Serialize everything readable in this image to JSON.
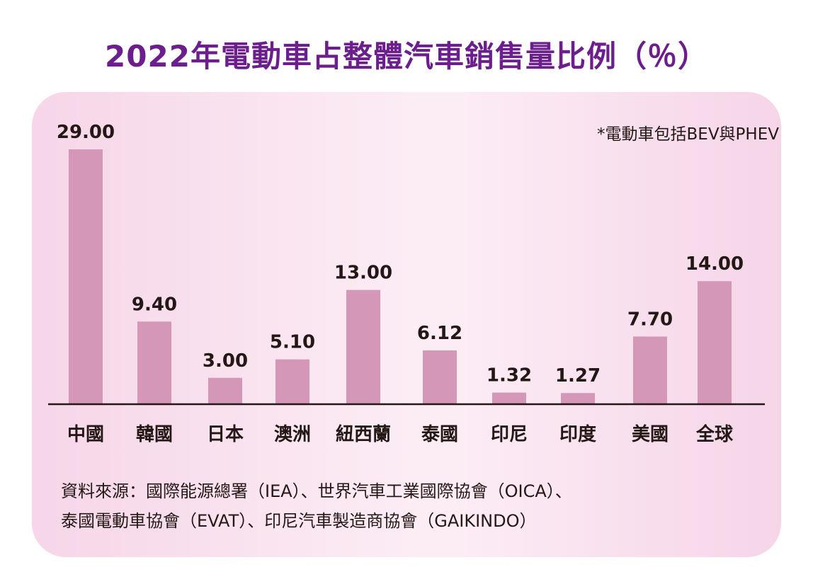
{
  "chart_data": {
    "type": "bar",
    "title": "2022年電動車占整體汽車銷售量比例（％）",
    "note": "*電動車包括BEV與PHEV",
    "categories": [
      "中國",
      "韓國",
      "日本",
      "澳洲",
      "紐西蘭",
      "泰國",
      "印尼",
      "印度",
      "美國",
      "全球"
    ],
    "values": [
      29.0,
      9.4,
      3.0,
      5.1,
      13.0,
      6.12,
      1.32,
      1.27,
      7.7,
      14.0
    ],
    "value_labels": [
      "29.00",
      "9.40",
      "3.00",
      "5.10",
      "13.00",
      "6.12",
      "1.32",
      "1.27",
      "7.70",
      "14.00"
    ],
    "xlabel": "",
    "ylabel": "",
    "ylim": [
      0,
      29
    ],
    "bar_color": "#d597b8",
    "grid": false
  },
  "source": {
    "line1": "資料來源：國際能源總署（IEA）、世界汽車工業國際協會（OICA）、",
    "line2": "泰國電動車協會（EVAT）、印尼汽車製造商協會（GAIKINDO）"
  }
}
